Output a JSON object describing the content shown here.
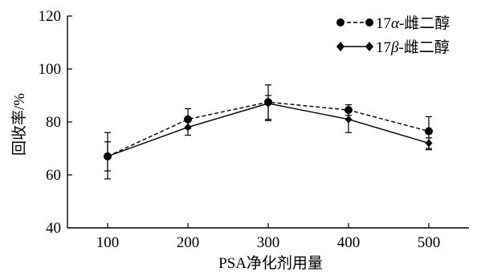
{
  "chart_data": {
    "type": "line",
    "x": [
      100,
      200,
      300,
      400,
      500
    ],
    "xlim": [
      50,
      550
    ],
    "ylim": [
      40,
      120
    ],
    "xticks": [
      "100",
      "200",
      "300",
      "400",
      "500"
    ],
    "yticks": [
      "40",
      "60",
      "80",
      "100",
      "120"
    ],
    "xlabel": "PSA净化剂用量",
    "ylabel": "回收率/%",
    "grid": false,
    "legend_position": "top-right",
    "series": [
      {
        "name": "17α-雌二醇",
        "name_prefix": "17",
        "name_greek": "α",
        "name_suffix": "-雌二醇",
        "marker": "circle",
        "line_style": "dashed",
        "color": "#000000",
        "values": [
          67,
          81,
          87.5,
          84.5,
          76.5
        ],
        "err_low": [
          8.5,
          3.5,
          7,
          2,
          6.5
        ],
        "err_high": [
          9,
          4,
          6.5,
          2,
          5.5
        ]
      },
      {
        "name": "17β-雌二醇",
        "name_prefix": "17",
        "name_greek": "β",
        "name_suffix": "-雌二醇",
        "marker": "diamond",
        "line_style": "solid",
        "color": "#000000",
        "values": [
          67,
          78,
          87,
          81,
          72
        ],
        "err_low": [
          5.5,
          3,
          6,
          5,
          2.5
        ],
        "err_high": [
          5.5,
          3,
          3,
          3.5,
          2
        ]
      }
    ]
  }
}
